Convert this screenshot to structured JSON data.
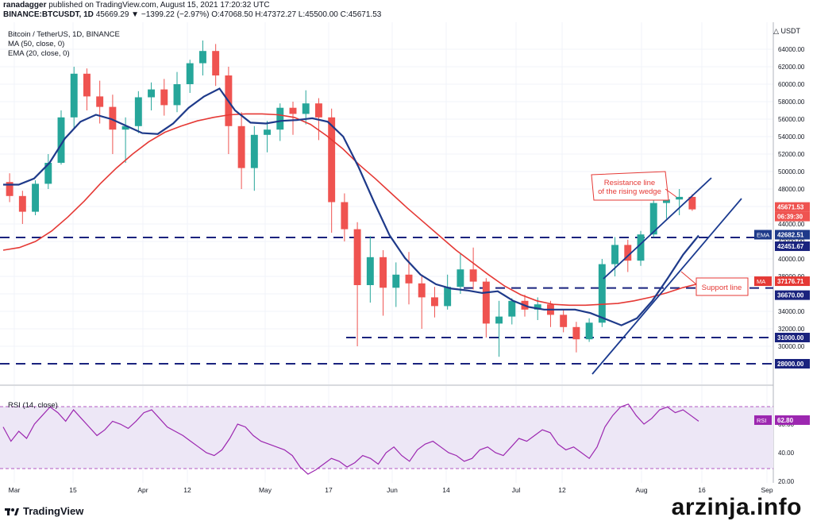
{
  "header": {
    "line1_user": "ranadagger",
    "line1_rest": " published on TradingView.com, August 15, 2021 17:20:32 UTC",
    "line2_symbol": "BINANCE:BTCUSDT, 1D",
    "line2_values": "45669.29 ▼ −1399.22 (−2.97%) O:47068.50 H:47372.27 L:45500.00 C:45671.53"
  },
  "legend": {
    "title": "Bitcoin / TetherUS, 1D, BINANCE",
    "ma": "MA (50, close, 0)",
    "ema": "EMA (20, close, 0)"
  },
  "currency": "USDT",
  "rsi": {
    "legend": "RSI (14, close)",
    "ticks": [
      "60.00",
      "40.00",
      "20.00"
    ],
    "value_label": "RSI",
    "value": "62.80",
    "color": "#9c27b0"
  },
  "annotations": {
    "resistance": [
      "Resistance line",
      "of the rising wedge"
    ],
    "support": "Support line"
  },
  "price_tags": {
    "last": "45671.53",
    "countdown": "06:39:30",
    "ema_label": "EMA",
    "ema": "42682.51",
    "level_42451": "42451.67",
    "ma_label": "MA",
    "ma": "37176.71",
    "level_36670": "36670.00",
    "level_31000": "31000.00",
    "level_28000": "28000.00"
  },
  "colors": {
    "up": "#26a69a",
    "down": "#ef5350",
    "ema": "#1e3a8a",
    "ma": "#e53935",
    "levels": "#1a237e",
    "rsi_fill": "#ede7f6",
    "wedge": "#1a3a8f"
  },
  "footer": {
    "brand": "TradingView",
    "watermark": "arzinja.info"
  },
  "chart_data": {
    "type": "candlestick",
    "title": "Bitcoin / TetherUS, 1D, BINANCE",
    "x_labels": [
      "Mar",
      "15",
      "Apr",
      "12",
      "May",
      "17",
      "Jun",
      "14",
      "Jul",
      "12",
      "Aug",
      "16",
      "Sep"
    ],
    "y_ticks": [
      "64000.00",
      "62000.00",
      "60000.00",
      "58000.00",
      "56000.00",
      "54000.00",
      "52000.00",
      "50000.00",
      "48000.00",
      "46000.00",
      "44000.00",
      "42000.00",
      "40000.00",
      "38000.00",
      "36000.00",
      "34000.00",
      "32000.00",
      "30000.00"
    ],
    "ylim": [
      28000,
      66000
    ],
    "horizontal_levels": [
      42451.67,
      36670.0,
      31000.0,
      28000.0
    ],
    "series": [
      {
        "name": "MA (50, close, 0)",
        "values": [
          41000,
          41300,
          42000,
          43200,
          44800,
          46600,
          48600,
          50400,
          52000,
          53400,
          54500,
          55200,
          55800,
          56200,
          56500,
          56600,
          56600,
          56500,
          56200,
          55400,
          54100,
          52600,
          50800,
          49200,
          47500,
          45800,
          44200,
          42600,
          41000,
          39600,
          38200,
          36900,
          35900,
          35200,
          34800,
          34700,
          34700,
          34800,
          34900,
          35200,
          35600,
          36100,
          36700,
          37176
        ]
      },
      {
        "name": "EMA (20, close, 0)",
        "values": [
          48500,
          48500,
          49200,
          51000,
          53800,
          55700,
          56500,
          56000,
          55200,
          54400,
          54300,
          55500,
          57300,
          58600,
          59500,
          57000,
          55600,
          55500,
          55800,
          55900,
          56100,
          55700,
          54000,
          50500,
          46500,
          42700,
          40100,
          38200,
          37100,
          36600,
          36400,
          36100,
          36300,
          35200,
          34500,
          34200,
          34200,
          34200,
          33800,
          33100,
          32400,
          33200,
          35200,
          37800,
          40500,
          42682
        ]
      }
    ],
    "candles": [
      [
        48800,
        49800,
        46500,
        47200
      ],
      [
        47200,
        47800,
        44000,
        45400
      ],
      [
        45400,
        49000,
        45000,
        48600
      ],
      [
        48600,
        52000,
        48000,
        51000
      ],
      [
        51000,
        57000,
        50800,
        56200
      ],
      [
        56200,
        62000,
        55000,
        61200
      ],
      [
        61200,
        61800,
        57000,
        58600
      ],
      [
        58600,
        60400,
        55500,
        57400
      ],
      [
        57400,
        58800,
        52000,
        54800
      ],
      [
        54800,
        56200,
        51000,
        55200
      ],
      [
        55200,
        59200,
        54400,
        58500
      ],
      [
        58500,
        60200,
        57000,
        59400
      ],
      [
        59400,
        60600,
        56400,
        57600
      ],
      [
        57600,
        61400,
        56800,
        60000
      ],
      [
        60000,
        62800,
        59000,
        62400
      ],
      [
        62400,
        65000,
        61000,
        63800
      ],
      [
        63800,
        64600,
        59800,
        61000
      ],
      [
        61000,
        62000,
        52000,
        55200
      ],
      [
        55200,
        56800,
        48000,
        50400
      ],
      [
        50400,
        55200,
        47800,
        54200
      ],
      [
        54200,
        55800,
        52200,
        54800
      ],
      [
        54800,
        57800,
        53500,
        57300
      ],
      [
        57300,
        58000,
        54200,
        56600
      ],
      [
        56600,
        59300,
        55400,
        57800
      ],
      [
        57800,
        58400,
        53600,
        56200
      ],
      [
        56200,
        57200,
        43000,
        46500
      ],
      [
        46500,
        47500,
        42000,
        43400
      ],
      [
        43400,
        44200,
        30000,
        37000
      ],
      [
        37000,
        42600,
        35000,
        40200
      ],
      [
        40200,
        41000,
        33500,
        36700
      ],
      [
        36700,
        39600,
        34500,
        38200
      ],
      [
        38200,
        40800,
        34800,
        37200
      ],
      [
        37200,
        38000,
        32000,
        35600
      ],
      [
        35600,
        36800,
        33300,
        34600
      ],
      [
        34600,
        38200,
        34200,
        36800
      ],
      [
        36800,
        40600,
        36000,
        38800
      ],
      [
        38800,
        41300,
        36500,
        37400
      ],
      [
        37400,
        37800,
        31000,
        32600
      ],
      [
        32600,
        35200,
        28800,
        33400
      ],
      [
        33400,
        35500,
        32500,
        35200
      ],
      [
        35200,
        35900,
        33400,
        34200
      ],
      [
        34200,
        35600,
        33000,
        34800
      ],
      [
        34800,
        35200,
        32200,
        33600
      ],
      [
        33600,
        34200,
        31600,
        32200
      ],
      [
        32200,
        32800,
        29300,
        30800
      ],
      [
        30800,
        33200,
        30500,
        32700
      ],
      [
        32700,
        40000,
        32200,
        39400
      ],
      [
        39400,
        42500,
        38000,
        41600
      ],
      [
        41600,
        42200,
        38500,
        39800
      ],
      [
        39800,
        43200,
        39200,
        42800
      ],
      [
        42800,
        46800,
        42500,
        46400
      ],
      [
        46400,
        47800,
        44600,
        46800
      ],
      [
        46800,
        48000,
        45000,
        47100
      ],
      [
        47100,
        47400,
        45500,
        45671
      ]
    ]
  }
}
